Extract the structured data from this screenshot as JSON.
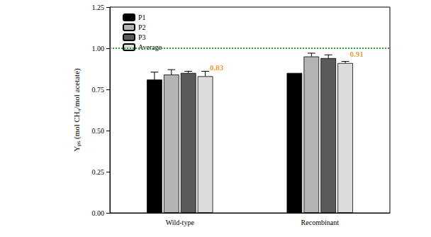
{
  "chart_data": {
    "type": "bar",
    "categories": [
      "Wild-type",
      "Recombinant"
    ],
    "ylabel": "Yₚₛ (mol CH₄/mol acetate)",
    "ylim": [
      0,
      1.25
    ],
    "yticks": [
      {
        "value": 0,
        "label": "0.00"
      },
      0.25,
      {
        "value": 0.5,
        "label": "0.50"
      },
      0.75,
      {
        "value": 1,
        "label": "1.00"
      },
      1.25
    ],
    "legend": "upper left",
    "series": [
      {
        "name": "P1",
        "color": "#000000",
        "values": [
          0.81,
          0.85
        ],
        "errors": [
          0.045,
          0
        ]
      },
      {
        "name": "P2",
        "color": "#b4b4b4",
        "values": [
          0.84,
          0.95
        ],
        "errors": [
          0.03,
          0.02
        ]
      },
      {
        "name": "P3",
        "color": "#5a5a5a",
        "values": [
          0.85,
          0.94
        ],
        "errors": [
          0.01,
          0.02
        ]
      },
      {
        "name": "Average",
        "color": "#dcdcdc",
        "values": [
          0.83,
          0.91
        ],
        "errors": [
          0.03,
          0.01
        ],
        "data_labels": true,
        "label_color": "#e8a33c"
      }
    ],
    "reference_line": {
      "value": 1,
      "color": "#2e9e2e",
      "line_style": "dotted"
    }
  }
}
